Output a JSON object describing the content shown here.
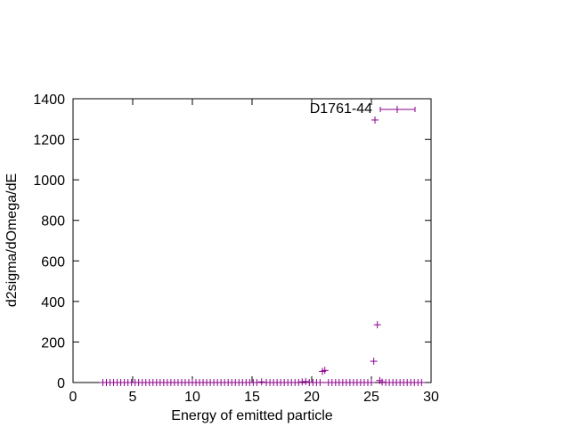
{
  "chart_data": {
    "type": "scatter",
    "xlabel": "Energy of emitted particle",
    "ylabel": "d2sigma/dOmega/dE",
    "xlim": [
      0,
      30
    ],
    "ylim": [
      0,
      1400
    ],
    "xticks": [
      0,
      5,
      10,
      15,
      20,
      25,
      30
    ],
    "yticks": [
      0,
      200,
      400,
      600,
      800,
      1000,
      1200,
      1400
    ],
    "grid": false,
    "legend_position": "top-right",
    "series": [
      {
        "name": "D1761-44",
        "color": "#8B008B",
        "marker": "plus",
        "points": [
          [
            2.5,
            0
          ],
          [
            2.8,
            0
          ],
          [
            3.1,
            0
          ],
          [
            3.4,
            0
          ],
          [
            3.7,
            0
          ],
          [
            4.0,
            0
          ],
          [
            4.3,
            0
          ],
          [
            4.6,
            0
          ],
          [
            4.9,
            0
          ],
          [
            5.2,
            0
          ],
          [
            5.5,
            0
          ],
          [
            5.8,
            0
          ],
          [
            6.1,
            0
          ],
          [
            6.4,
            0
          ],
          [
            6.7,
            0
          ],
          [
            7.0,
            0
          ],
          [
            7.3,
            0
          ],
          [
            7.6,
            0
          ],
          [
            7.9,
            0
          ],
          [
            8.2,
            0
          ],
          [
            8.5,
            0
          ],
          [
            8.8,
            0
          ],
          [
            9.1,
            0
          ],
          [
            9.4,
            0
          ],
          [
            9.7,
            0
          ],
          [
            10.0,
            0
          ],
          [
            10.3,
            0
          ],
          [
            10.6,
            0
          ],
          [
            10.9,
            0
          ],
          [
            11.2,
            0
          ],
          [
            11.5,
            0
          ],
          [
            11.8,
            0
          ],
          [
            12.1,
            0
          ],
          [
            12.4,
            0
          ],
          [
            12.7,
            0
          ],
          [
            13.0,
            0
          ],
          [
            13.3,
            0
          ],
          [
            13.6,
            0
          ],
          [
            13.9,
            0
          ],
          [
            14.2,
            0
          ],
          [
            14.5,
            0
          ],
          [
            14.8,
            0
          ],
          [
            15.1,
            0
          ],
          [
            15.4,
            0
          ],
          [
            15.8,
            3
          ],
          [
            16.2,
            0
          ],
          [
            16.5,
            0
          ],
          [
            16.8,
            0
          ],
          [
            17.1,
            0
          ],
          [
            17.4,
            0
          ],
          [
            17.7,
            0
          ],
          [
            18.0,
            0
          ],
          [
            18.3,
            0
          ],
          [
            18.6,
            0
          ],
          [
            18.9,
            0
          ],
          [
            19.2,
            3
          ],
          [
            19.5,
            5
          ],
          [
            19.8,
            0
          ],
          [
            20.1,
            0
          ],
          [
            20.4,
            0
          ],
          [
            20.7,
            0
          ],
          [
            20.9,
            55
          ],
          [
            21.1,
            60
          ],
          [
            21.4,
            0
          ],
          [
            21.7,
            0
          ],
          [
            22.0,
            0
          ],
          [
            22.3,
            0
          ],
          [
            22.6,
            0
          ],
          [
            22.9,
            0
          ],
          [
            23.2,
            0
          ],
          [
            23.5,
            0
          ],
          [
            23.8,
            0
          ],
          [
            24.1,
            0
          ],
          [
            24.4,
            0
          ],
          [
            24.7,
            0
          ],
          [
            25.0,
            0
          ],
          [
            25.2,
            105
          ],
          [
            25.3,
            1295
          ],
          [
            25.5,
            285
          ],
          [
            25.7,
            10
          ],
          [
            25.9,
            2
          ],
          [
            26.2,
            0
          ],
          [
            26.5,
            0
          ],
          [
            26.8,
            0
          ],
          [
            27.1,
            0
          ],
          [
            27.4,
            0
          ],
          [
            27.7,
            0
          ],
          [
            28.0,
            0
          ],
          [
            28.3,
            0
          ],
          [
            28.6,
            0
          ],
          [
            28.9,
            0
          ],
          [
            29.2,
            0
          ]
        ]
      }
    ]
  }
}
